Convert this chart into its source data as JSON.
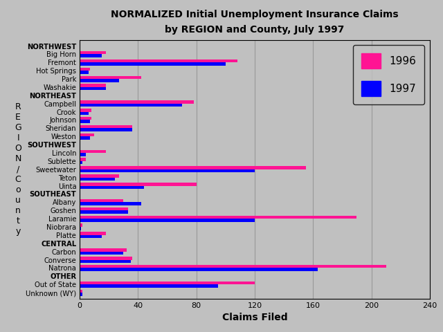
{
  "title_line1": "NORMALIZED Initial Unemployment Insurance Claims",
  "title_line2": "by REGION and County, July 1997",
  "xlabel": "Claims Filed",
  "xlim": [
    0,
    240
  ],
  "xticks": [
    0,
    40,
    80,
    120,
    160,
    200,
    240
  ],
  "background_color": "#c0c0c0",
  "legend_labels": [
    "1996",
    "1997"
  ],
  "bar_color_1996": "#ff1493",
  "bar_color_1997": "#0000ff",
  "categories": [
    "NORTHWEST",
    "Big Horn",
    "Fremont",
    "Hot Springs",
    "Park",
    "Washakie",
    "NORTHEAST",
    "Campbell",
    "Crook",
    "Johnson",
    "Sheridan",
    "Weston",
    "SOUTHWEST",
    "Lincoln",
    "Sublette",
    "Sweetwater",
    "Teton",
    "Uinta",
    "SOUTHEAST",
    "Albany",
    "Goshen",
    "Laramie",
    "Niobrara",
    "Platte",
    "CENTRAL",
    "Carbon",
    "Converse",
    "Natrona",
    "OTHER",
    "Out of State",
    "Unknown (WY)"
  ],
  "values_1996": [
    0,
    18,
    108,
    7,
    42,
    18,
    0,
    78,
    8,
    8,
    36,
    10,
    0,
    18,
    4,
    155,
    27,
    80,
    0,
    30,
    33,
    190,
    2,
    18,
    0,
    32,
    36,
    210,
    0,
    120,
    2
  ],
  "values_1997": [
    0,
    15,
    100,
    6,
    27,
    18,
    0,
    70,
    6,
    7,
    36,
    7,
    0,
    4,
    2,
    120,
    24,
    44,
    0,
    42,
    33,
    120,
    1,
    15,
    0,
    30,
    35,
    163,
    0,
    95,
    2
  ],
  "section_headers": [
    "NORTHWEST",
    "NORTHEAST",
    "SOUTHWEST",
    "SOUTHEAST",
    "CENTRAL",
    "OTHER"
  ],
  "bar_height": 0.38,
  "gridcolor": "#999999",
  "ylabel_chars": [
    "R",
    "E",
    "G",
    "I",
    "O",
    "N",
    "/",
    "C",
    "o",
    "u",
    "n",
    "t",
    "y"
  ]
}
